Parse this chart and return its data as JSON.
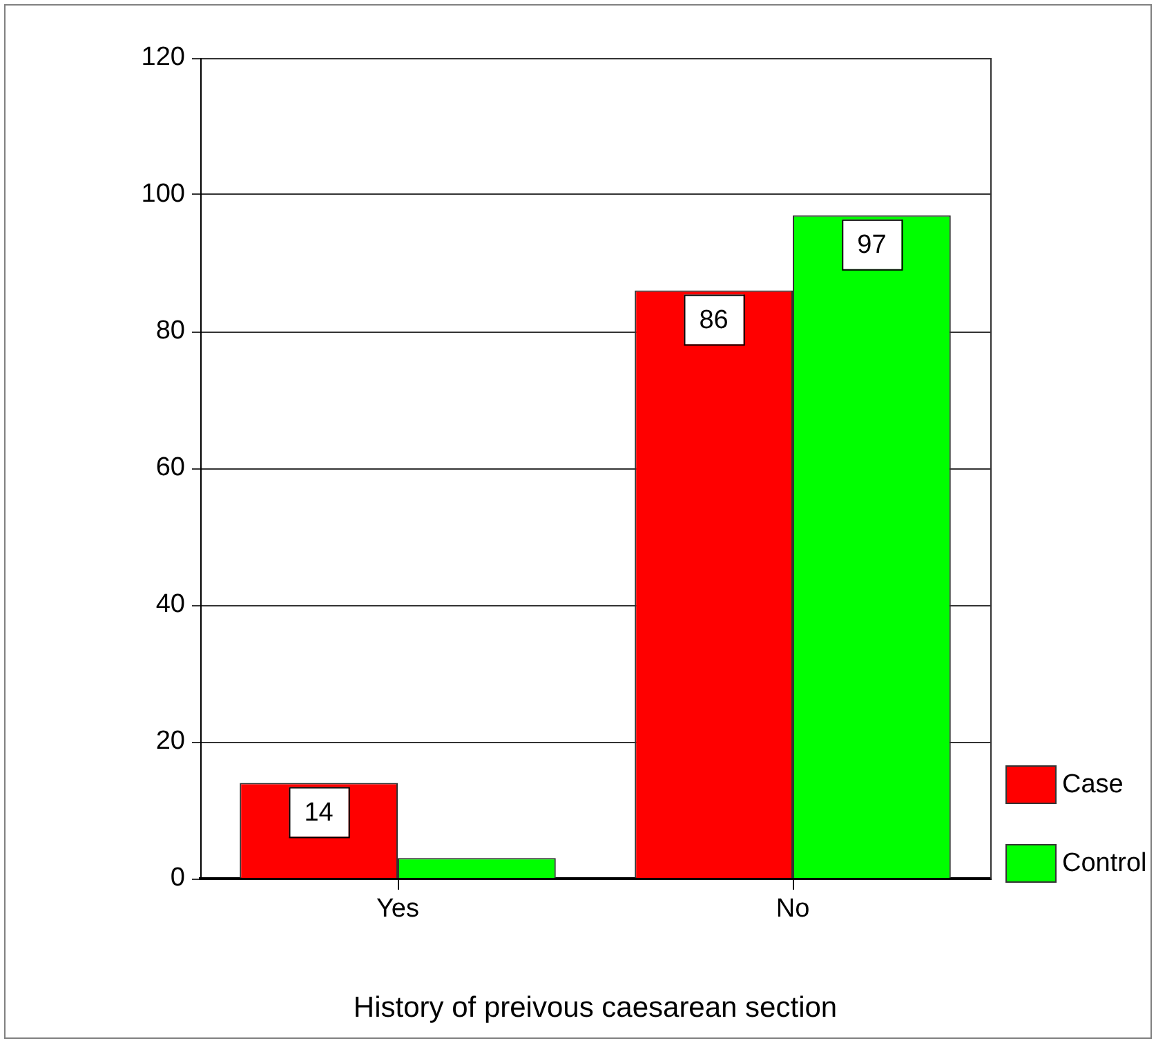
{
  "chart_data": {
    "type": "bar",
    "xlabel": "History of preivous caesarean section",
    "categories": [
      "Yes",
      "No"
    ],
    "series": [
      {
        "name": "Case",
        "color": "#ff0000",
        "values": [
          14,
          86
        ],
        "value_labels": [
          "14",
          "86"
        ]
      },
      {
        "name": "Control",
        "color": "#00ff00",
        "values": [
          3,
          97
        ],
        "value_labels": [
          null,
          "97"
        ]
      }
    ],
    "ylim": [
      0,
      120
    ],
    "yticks": [
      0,
      20,
      40,
      60,
      80,
      100,
      120
    ],
    "grid": "y",
    "legend": "bottom right"
  }
}
